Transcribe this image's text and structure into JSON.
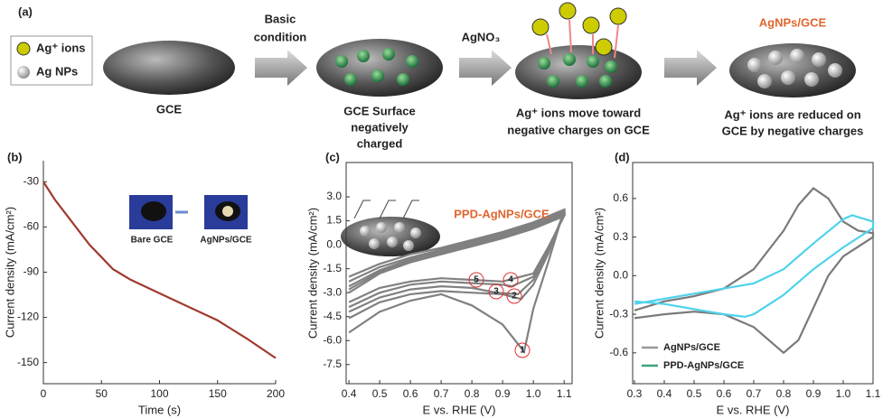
{
  "panel_a": {
    "panel": "(a)",
    "legend": [
      "Ag⁺ ions",
      "Ag NPs"
    ],
    "step1": "GCE",
    "arrow1": [
      "Basic",
      "condition"
    ],
    "step2": [
      "GCE Surface",
      "negatively",
      "charged"
    ],
    "arrow2": "AgNO₃",
    "step3": [
      "Ag⁺ ions move toward",
      "negative charges on GCE"
    ],
    "step4_title": "AgNPs/GCE",
    "step4": [
      "Ag⁺ ions are reduced on",
      "GCE by negative charges"
    ]
  },
  "chart_data": [
    {
      "type": "line",
      "panel": "(b)",
      "xlabel": "Time (s)",
      "ylabel": "Current density (mA/cm²)",
      "annotations": [
        "Bare GCE",
        "AgNPs/GCE"
      ],
      "xlim": [
        0,
        200
      ],
      "xticks": [
        0,
        50,
        100,
        150,
        200
      ],
      "ylim": [
        -164,
        -16
      ],
      "yticks": [
        -30,
        -60,
        -90,
        -120,
        -150
      ],
      "series": [
        {
          "color": "#a03a30",
          "x": [
            0,
            10,
            20,
            30,
            40,
            50,
            60,
            75,
            100,
            125,
            150,
            175,
            200
          ],
          "values": [
            -30,
            -42,
            -52,
            -62,
            -72,
            -80,
            -88,
            -95,
            -104,
            -113,
            -122,
            -134,
            -147
          ]
        }
      ]
    },
    {
      "type": "line",
      "panel": "(c)",
      "xlabel": "E vs. RHE (V)",
      "ylabel": "Current density (mA/cm²)",
      "annotations": [
        "PPD-AgNPs/GCE",
        "1",
        "2",
        "3",
        "4",
        "5"
      ],
      "xlim": [
        0.391,
        1.126
      ],
      "xticks": [
        0.4,
        0.5,
        0.6,
        0.7,
        0.8,
        0.9,
        {
          "value": 1,
          "label": "1.0"
        },
        1.1
      ],
      "ylim": [
        -8.7,
        5.15
      ],
      "yticks": [
        {
          "value": 3,
          "label": "3.0"
        },
        1.5,
        {
          "value": 0,
          "label": "0.0"
        },
        -1.5,
        {
          "value": -3,
          "label": "-3.0"
        },
        -4.5,
        {
          "value": -6,
          "label": "-6.0"
        },
        -7.5
      ],
      "series": [
        {
          "color": "#808080",
          "x": [
            0.4,
            0.5,
            0.6,
            0.7,
            0.8,
            0.9,
            0.97,
            1.0,
            1.05,
            1.1,
            1.0,
            0.9,
            0.8,
            0.7,
            0.6,
            0.5,
            0.4
          ],
          "values": [
            -5.5,
            -4.2,
            -3.5,
            -3.1,
            -3.8,
            -5.0,
            -6.7,
            -4.0,
            -1.0,
            2.2,
            1.4,
            0.8,
            0.3,
            -0.2,
            -0.6,
            -1.2,
            -2.0
          ]
        },
        {
          "color": "#808080",
          "x": [
            0.4,
            0.5,
            0.6,
            0.7,
            0.8,
            0.9,
            0.96,
            1.0,
            1.05,
            1.1,
            1.0,
            0.9,
            0.8,
            0.7,
            0.6,
            0.5,
            0.4
          ],
          "values": [
            -4.6,
            -3.6,
            -3.1,
            -2.9,
            -3.0,
            -3.1,
            -3.4,
            -2.5,
            -0.5,
            2.1,
            1.3,
            0.7,
            0.2,
            -0.3,
            -0.8,
            -1.4,
            -2.3
          ]
        },
        {
          "color": "#808080",
          "x": [
            0.4,
            0.5,
            0.6,
            0.7,
            0.8,
            0.88,
            0.95,
            1.0,
            1.05,
            1.1,
            1.0,
            0.9,
            0.8,
            0.7,
            0.6,
            0.5,
            0.4
          ],
          "values": [
            -4.2,
            -3.3,
            -2.8,
            -2.6,
            -2.7,
            -3.0,
            -3.1,
            -2.2,
            -0.3,
            2.0,
            1.2,
            0.6,
            0.1,
            -0.4,
            -0.9,
            -1.6,
            -2.6
          ]
        },
        {
          "color": "#808080",
          "x": [
            0.4,
            0.5,
            0.6,
            0.7,
            0.8,
            0.9,
            0.93,
            1.0,
            1.05,
            1.1,
            1.0,
            0.9,
            0.8,
            0.7,
            0.6,
            0.5,
            0.4
          ],
          "values": [
            -3.9,
            -3.0,
            -2.5,
            -2.3,
            -2.4,
            -2.5,
            -2.6,
            -2.0,
            -0.2,
            1.9,
            1.1,
            0.5,
            0.0,
            -0.5,
            -1.0,
            -1.7,
            -2.8
          ]
        },
        {
          "color": "#808080",
          "x": [
            0.4,
            0.5,
            0.6,
            0.7,
            0.8,
            0.9,
            1.0,
            1.05,
            1.1,
            1.0,
            0.9,
            0.8,
            0.7,
            0.6,
            0.5,
            0.4
          ],
          "values": [
            -3.6,
            -2.7,
            -2.3,
            -2.1,
            -2.2,
            -2.3,
            -1.8,
            -0.1,
            1.8,
            1.0,
            0.4,
            -0.1,
            -0.6,
            -1.1,
            -1.8,
            -3.0
          ]
        }
      ]
    },
    {
      "type": "line",
      "panel": "(d)",
      "xlabel": "E vs. RHE (V)",
      "ylabel": "Current density (mA/cm²)",
      "xlim": [
        0.294,
        1.1
      ],
      "xticks": [
        0.3,
        0.4,
        0.5,
        0.6,
        0.7,
        0.8,
        0.9,
        {
          "value": 1,
          "label": "1.0"
        },
        1.1
      ],
      "ylim": [
        -0.84,
        0.88
      ],
      "yticks": [
        0.6,
        0.3,
        {
          "value": 0,
          "label": "0.0"
        },
        -0.3,
        -0.6
      ],
      "legend": "bottom-left",
      "series": [
        {
          "name": "AgNPs/GCE",
          "color": "#7a7a7a",
          "legend_color": "#999999",
          "x": [
            0.3,
            0.4,
            0.5,
            0.6,
            0.7,
            0.8,
            0.85,
            0.9,
            0.95,
            1.0,
            1.05,
            1.1,
            1.1,
            1.0,
            0.95,
            0.9,
            0.85,
            0.8,
            0.75,
            0.7,
            0.6,
            0.5,
            0.4,
            0.3
          ],
          "values": [
            -0.27,
            -0.2,
            -0.16,
            -0.1,
            0.05,
            0.35,
            0.55,
            0.68,
            0.6,
            0.42,
            0.35,
            0.33,
            0.3,
            0.15,
            0.0,
            -0.25,
            -0.5,
            -0.6,
            -0.5,
            -0.4,
            -0.3,
            -0.28,
            -0.3,
            -0.33
          ]
        },
        {
          "name": "PPD-AgNPs/GCE",
          "color": "#4fd2ec",
          "legend_color": "#3aa37a",
          "x": [
            0.3,
            0.4,
            0.5,
            0.6,
            0.7,
            0.8,
            0.9,
            1.0,
            1.03,
            1.1,
            1.1,
            1.0,
            0.9,
            0.8,
            0.7,
            0.67,
            0.6,
            0.5,
            0.4,
            0.3
          ],
          "values": [
            -0.22,
            -0.18,
            -0.14,
            -0.1,
            -0.06,
            0.05,
            0.25,
            0.44,
            0.47,
            0.42,
            0.37,
            0.22,
            0.05,
            -0.15,
            -0.3,
            -0.32,
            -0.3,
            -0.26,
            -0.22,
            -0.2
          ]
        }
      ]
    }
  ]
}
